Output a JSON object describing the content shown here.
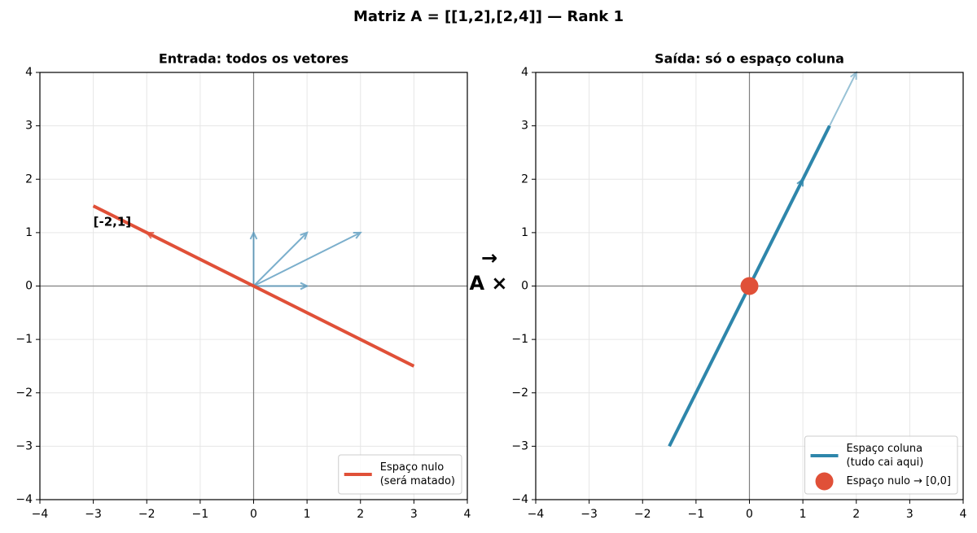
{
  "title": "Matriz A = [[1,2],[2,4]] — Rank 1",
  "annotation": [
    "→",
    "A ×"
  ],
  "chart_data": [
    {
      "type": "vector",
      "title": "Entrada: todos os vetores",
      "xlim": [
        -4,
        4
      ],
      "ylim": [
        -4,
        4
      ],
      "xticks": [
        {
          "value": -4,
          "label": "−4"
        },
        {
          "value": -3,
          "label": "−3"
        },
        {
          "value": -2,
          "label": "−2"
        },
        {
          "value": -1,
          "label": "−1"
        },
        0,
        1,
        2,
        3,
        4
      ],
      "yticks": [
        {
          "value": -4,
          "label": "−4"
        },
        {
          "value": -3,
          "label": "−3"
        },
        {
          "value": -2,
          "label": "−2"
        },
        {
          "value": -1,
          "label": "−1"
        },
        0,
        1,
        2,
        3,
        4
      ],
      "grid": true,
      "legend": "lower right",
      "series": [
        {
          "name": [
            "Espaço nulo",
            "(será matado)"
          ],
          "color": "#e05038",
          "x": [
            -3,
            3
          ],
          "y": [
            1.5,
            -1.5
          ]
        }
      ],
      "vectors": [
        {
          "x": 1,
          "y": 0,
          "color": "#5a9bbf"
        },
        {
          "x": 0,
          "y": 1,
          "color": "#5a9bbf"
        },
        {
          "x": 1,
          "y": 1,
          "color": "#5a9bbf"
        },
        {
          "x": 2,
          "y": 1,
          "color": "#5a9bbf"
        },
        {
          "x": -2,
          "y": 1,
          "color": "#e05038"
        }
      ],
      "points": [],
      "annotations": [
        {
          "text": "[-2,1]",
          "x": -3,
          "y": 1.2,
          "color": "#e05038"
        }
      ]
    },
    {
      "type": "vector",
      "title": "Saída: só o espaço coluna",
      "xlim": [
        -4,
        4
      ],
      "ylim": [
        -4,
        4
      ],
      "xticks": [
        {
          "value": -4,
          "label": "−4"
        },
        {
          "value": -3,
          "label": "−3"
        },
        {
          "value": -2,
          "label": "−2"
        },
        {
          "value": -1,
          "label": "−1"
        },
        0,
        1,
        2,
        3,
        4
      ],
      "yticks": [
        {
          "value": -4,
          "label": "−4"
        },
        {
          "value": -3,
          "label": "−3"
        },
        {
          "value": -2,
          "label": "−2"
        },
        {
          "value": -1,
          "label": "−1"
        },
        0,
        1,
        2,
        3,
        4
      ],
      "grid": true,
      "legend": "lower right",
      "series": [
        {
          "name": [
            "Espaço coluna",
            "(tudo cai aqui)"
          ],
          "color": "#2e86ab",
          "x": [
            -1.5,
            1.5
          ],
          "y": [
            -3,
            3
          ]
        }
      ],
      "vectors": [
        {
          "x": 2,
          "y": 4,
          "color": "#7fb3cc"
        },
        {
          "x": 1,
          "y": 2,
          "color": "#2e86ab"
        }
      ],
      "points": [
        {
          "name": [
            "Espaço nulo → [0,0]"
          ],
          "color": "#e05038",
          "x": [
            0
          ],
          "y": [
            0
          ]
        }
      ],
      "annotations": []
    }
  ]
}
